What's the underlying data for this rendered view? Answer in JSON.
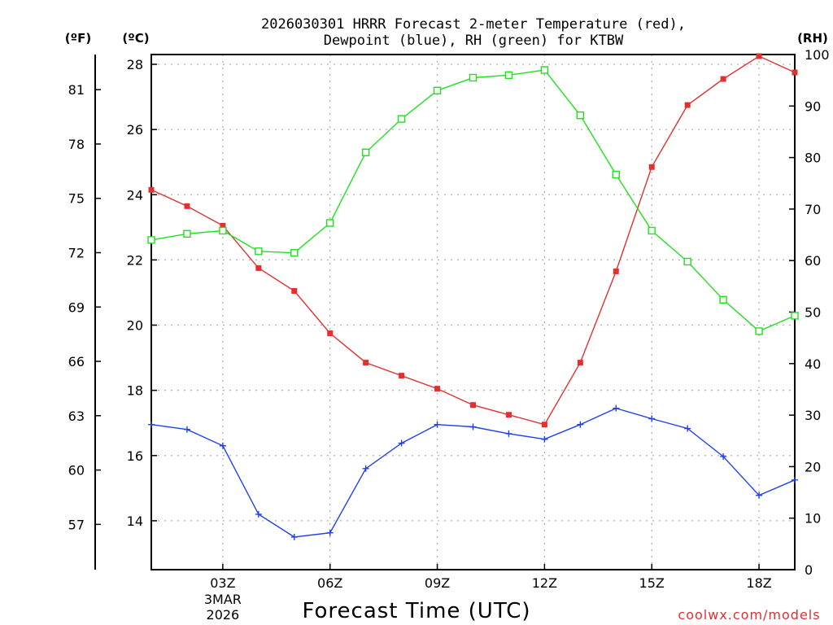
{
  "chart_data": {
    "type": "line",
    "title_line1": "2026030301 HRRR Forecast 2-meter Temperature (red),",
    "title_line2": "Dewpoint (blue), RH (green) for KTBW",
    "xlabel": "Forecast Time (UTC)",
    "credit": "coolwx.com/models",
    "x_hours": [
      1,
      2,
      3,
      4,
      5,
      6,
      7,
      8,
      9,
      10,
      11,
      12,
      13,
      14,
      15,
      16,
      17,
      18,
      19
    ],
    "x_ticks": [
      {
        "hour": 3,
        "label": "03Z",
        "date1": "3MAR",
        "date2": "2026"
      },
      {
        "hour": 6,
        "label": "06Z"
      },
      {
        "hour": 9,
        "label": "09Z"
      },
      {
        "hour": 12,
        "label": "12Z"
      },
      {
        "hour": 15,
        "label": "15Z"
      },
      {
        "hour": 18,
        "label": "18Z"
      }
    ],
    "xlim": [
      1,
      19
    ],
    "left_axis_c": {
      "unit": "(ºC)",
      "ylim": [
        12.5,
        28.3
      ],
      "ticks": [
        14,
        16,
        18,
        20,
        22,
        24,
        26,
        28
      ]
    },
    "left_axis_f": {
      "unit": "(ºF)",
      "ticks": [
        57,
        60,
        63,
        66,
        69,
        72,
        75,
        78,
        81
      ]
    },
    "right_axis": {
      "unit": "(RH)",
      "ylim": [
        0,
        100
      ],
      "ticks": [
        0,
        10,
        20,
        30,
        40,
        50,
        60,
        70,
        80,
        90,
        100
      ]
    },
    "series": [
      {
        "name": "Temperature",
        "color": "#e03030",
        "axis": "C",
        "marker": "filled-square",
        "values": [
          24.15,
          23.65,
          23.05,
          21.75,
          21.05,
          19.75,
          18.85,
          18.45,
          18.05,
          17.55,
          17.25,
          16.95,
          18.85,
          21.65,
          24.85,
          26.75,
          27.55,
          28.25,
          27.75
        ]
      },
      {
        "name": "Dewpoint",
        "color": "#2040f0",
        "axis": "C",
        "marker": "plus",
        "values": [
          16.95,
          16.8,
          16.3,
          14.2,
          13.5,
          13.63,
          15.6,
          16.38,
          16.95,
          16.88,
          16.67,
          16.5,
          16.95,
          17.45,
          17.13,
          16.83,
          15.97,
          14.78,
          15.25
        ]
      },
      {
        "name": "RH",
        "color": "#20e020",
        "axis": "RH",
        "marker": "open-square",
        "values": [
          64.0,
          65.2,
          65.8,
          61.8,
          61.5,
          67.3,
          81.0,
          87.5,
          93.0,
          95.5,
          96.0,
          97.0,
          88.2,
          76.7,
          65.8,
          59.8,
          52.4,
          46.3,
          49.3
        ]
      }
    ]
  }
}
